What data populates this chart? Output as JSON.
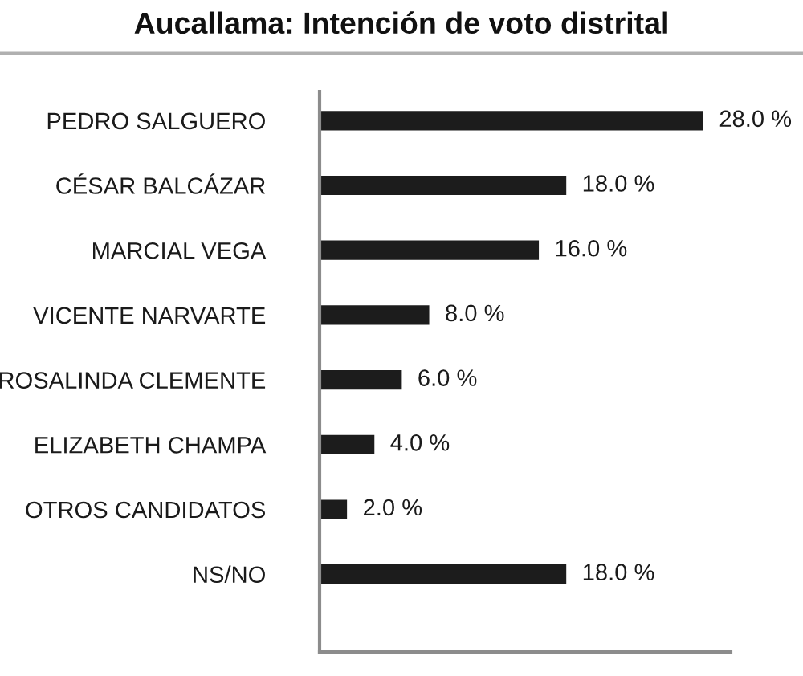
{
  "chart_data": {
    "type": "bar",
    "orientation": "horizontal",
    "title": "Aucallama: Intención de voto distrital",
    "categories": [
      "PEDRO SALGUERO",
      "CÉSAR BALCÁZAR",
      "MARCIAL VEGA",
      "VICENTE NARVARTE",
      "ROSALINDA CLEMENTE",
      "ELIZABETH CHAMPA",
      "OTROS CANDIDATOS",
      "NS/NO"
    ],
    "values": [
      28.0,
      18.0,
      16.0,
      8.0,
      6.0,
      4.0,
      2.0,
      18.0
    ],
    "value_labels": [
      "28.0 %",
      "18.0 %",
      "16.0 %",
      "8.0 %",
      "6.0 %",
      "4.0 %",
      "2.0 %",
      "18.0 %"
    ],
    "color": "#1c1c1c",
    "xlim": [
      0,
      30
    ],
    "tick_labels": "y",
    "grid": false,
    "legend": false
  }
}
